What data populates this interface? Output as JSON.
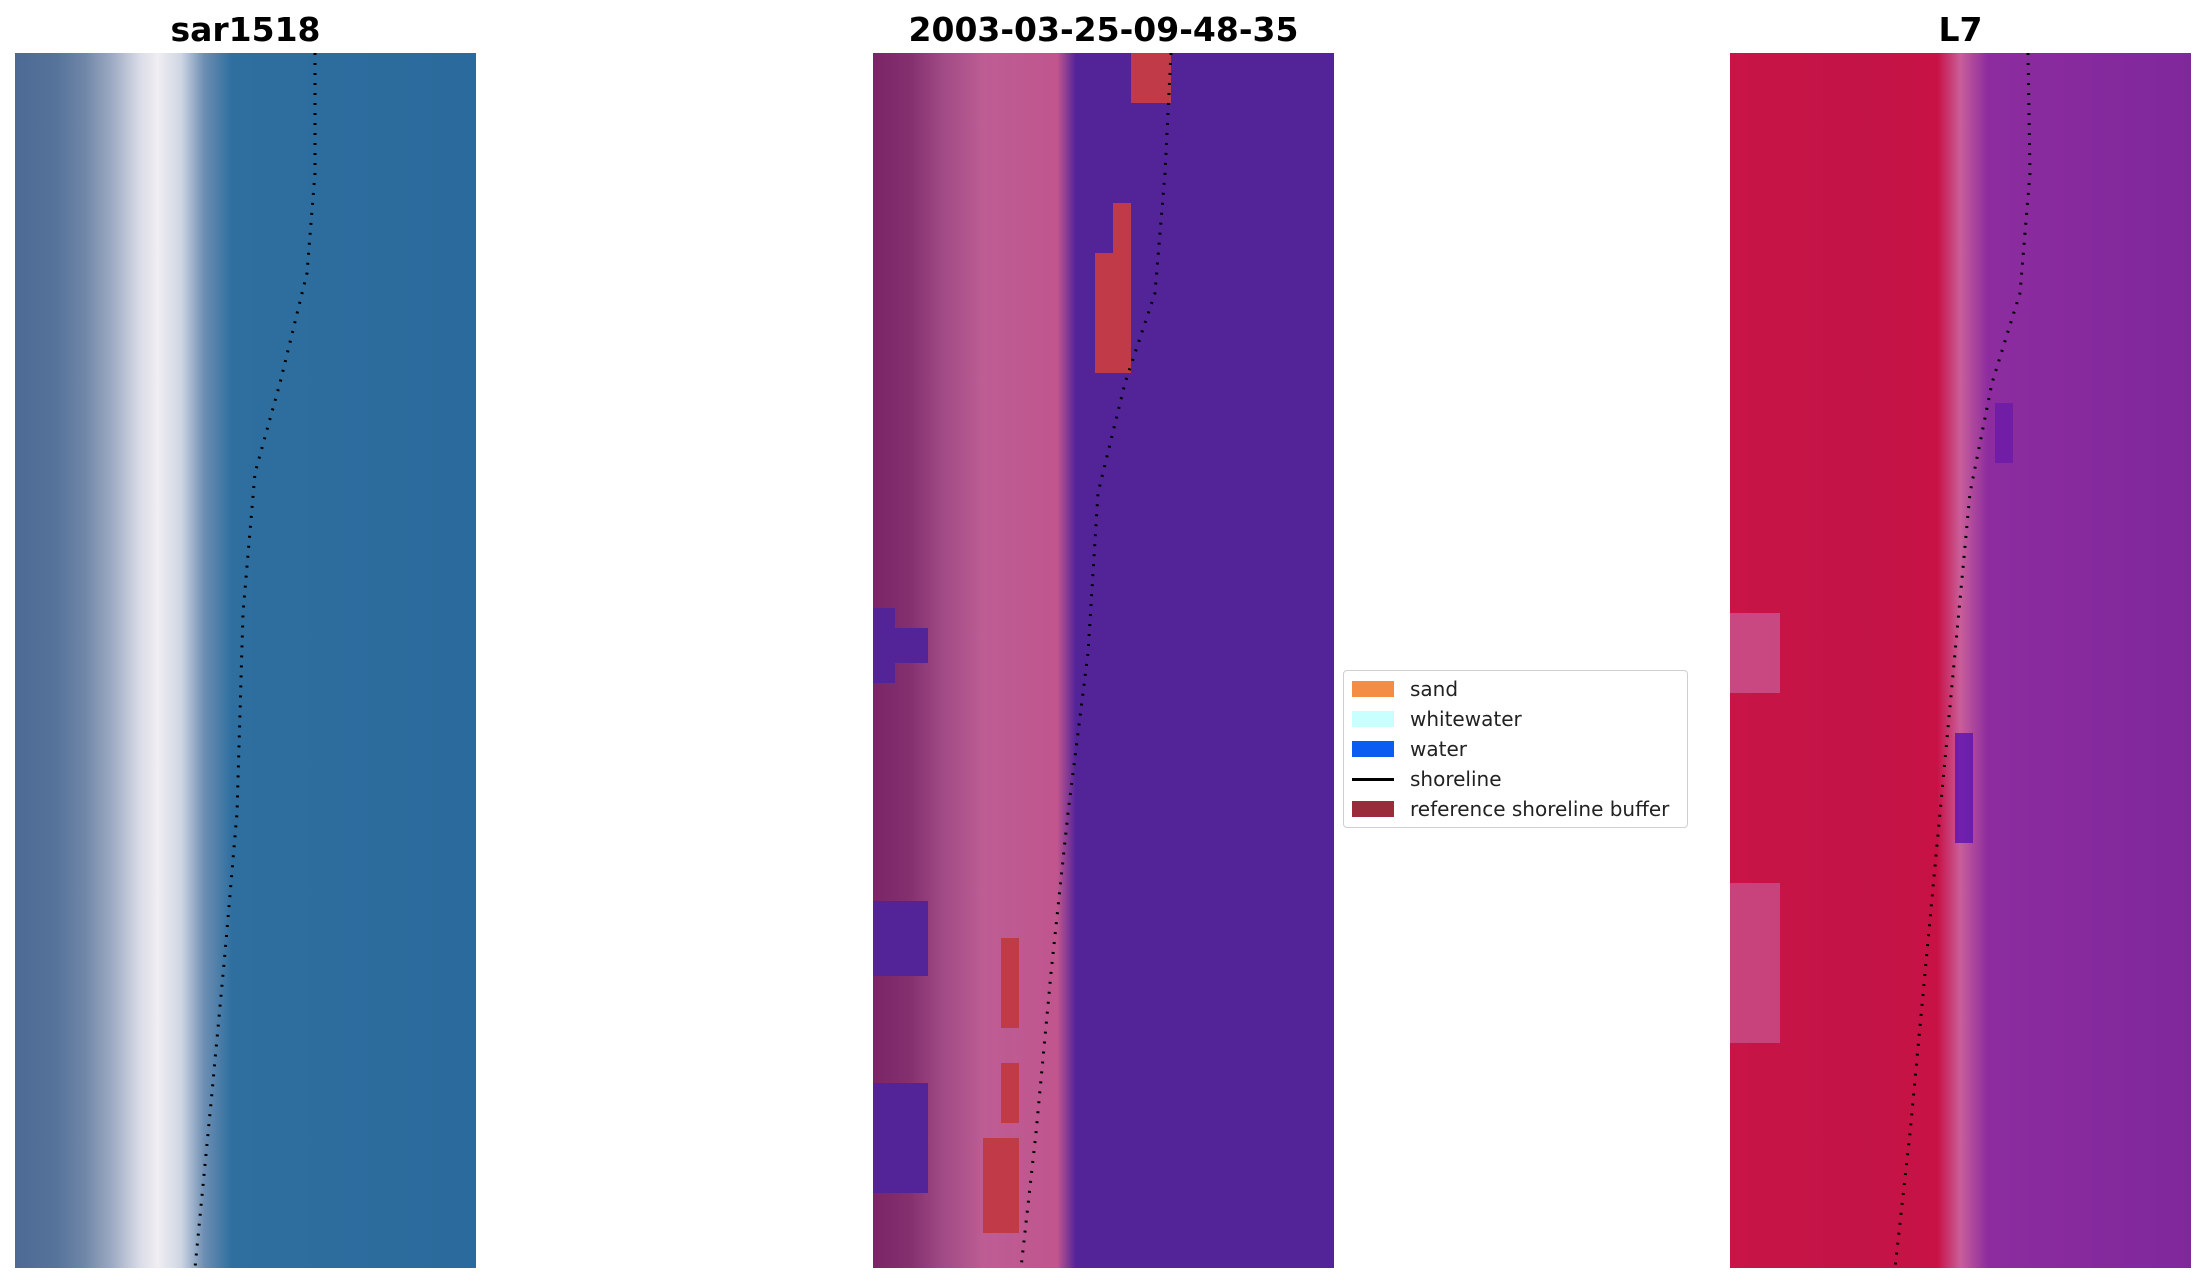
{
  "panels": [
    {
      "title": "sar1518"
    },
    {
      "title": "2003-03-25-09-48-35"
    },
    {
      "title": "L7"
    }
  ],
  "legend": {
    "items": [
      {
        "label": "sand",
        "color": "#f58c43"
      },
      {
        "label": "whitewater",
        "color": "#c8ffff"
      },
      {
        "label": "water",
        "color": "#0b5cf0"
      },
      {
        "label": "shoreline",
        "color": "#000000"
      },
      {
        "label": "reference shoreline buffer",
        "color": "#9a2b3a"
      }
    ]
  },
  "colors": {
    "buffer_red": "#c03a48",
    "water_purple": "#532398",
    "shoreline_dots": "#000000"
  }
}
